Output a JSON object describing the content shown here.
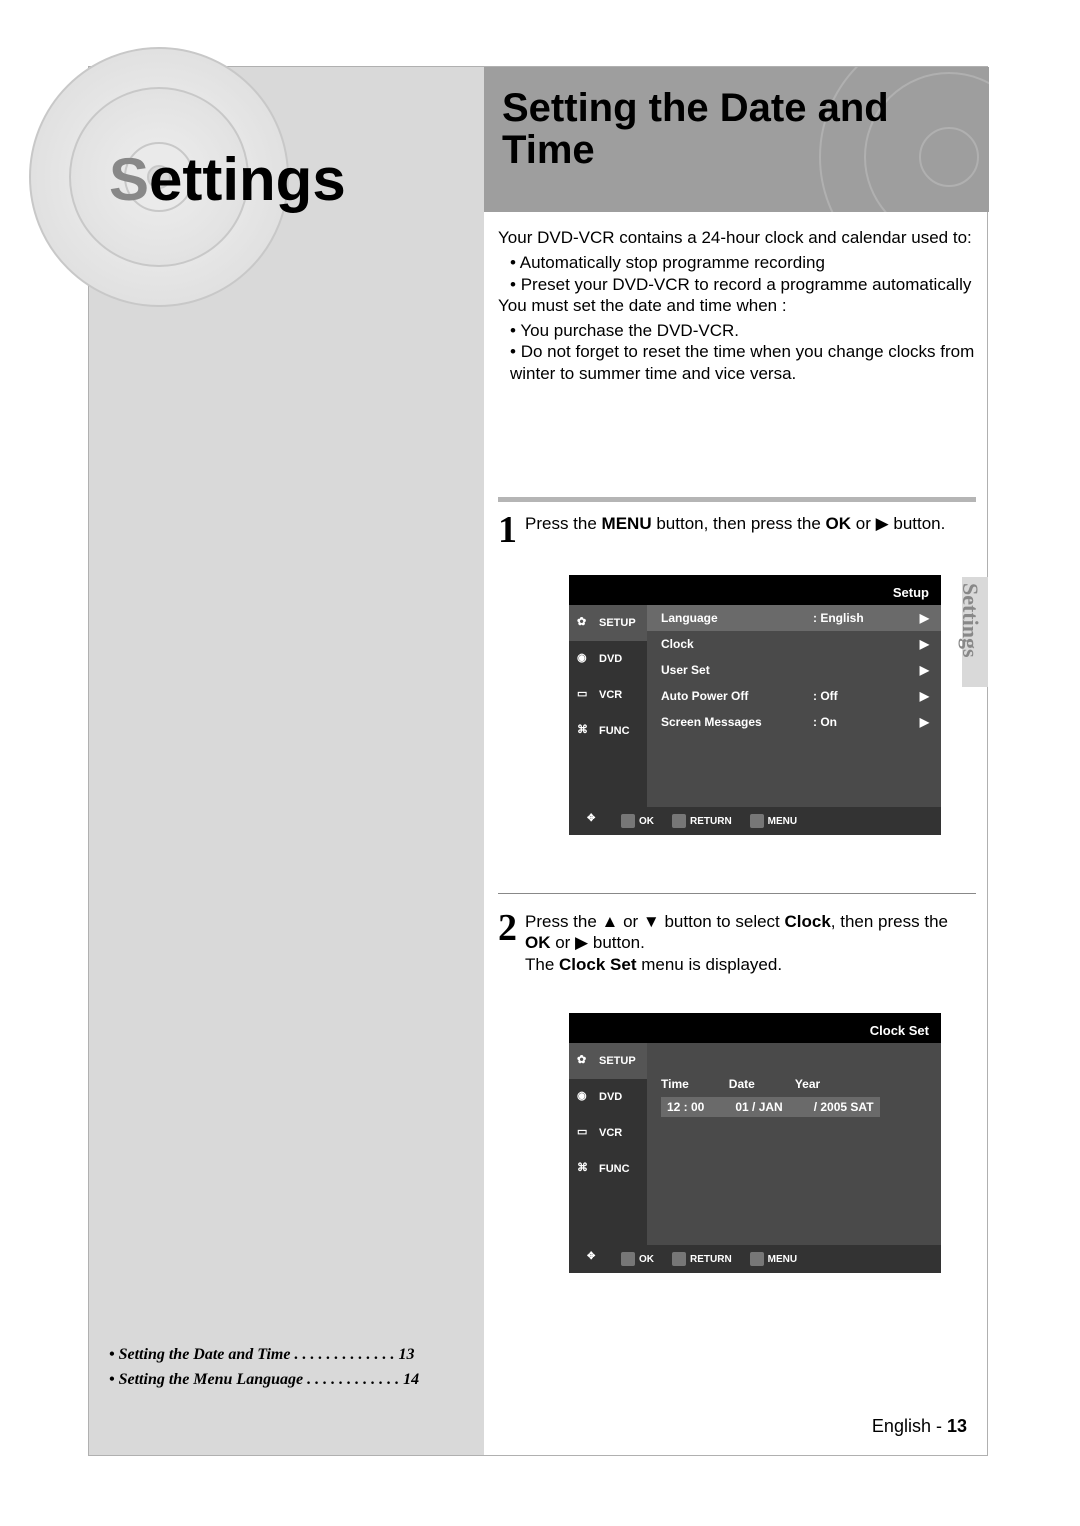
{
  "section": {
    "accent_letter": "S",
    "rest": "ettings"
  },
  "header": {
    "title_line1": "Setting the Date and",
    "title_line2": "Time"
  },
  "intro": {
    "p1": "Your DVD-VCR contains a 24-hour clock and calendar used to:",
    "b1": "Automatically stop programme recording",
    "b2": "Preset your DVD-VCR to record a programme automatically",
    "p2": "You must set the date and time when :",
    "b3": "You purchase the DVD-VCR.",
    "b4": "Do not forget to reset the time when you change clocks from winter to summer time and vice versa."
  },
  "step1": {
    "num": "1",
    "text_a": "Press the ",
    "bold_a": "MENU",
    "text_b": " button, then press the ",
    "bold_b": "OK",
    "text_c": " or ▶ button."
  },
  "step2": {
    "num": "2",
    "text_a": "Press the ▲ or ▼ button to select ",
    "bold_a": "Clock",
    "text_b": ", then press the ",
    "bold_b": "OK",
    "text_c": " or ▶ button.",
    "line2_a": "The ",
    "line2_bold": "Clock Set",
    "line2_b": " menu is displayed."
  },
  "osd1": {
    "title": "Setup",
    "side": [
      "SETUP",
      "DVD",
      "VCR",
      "FUNC"
    ],
    "rows": [
      {
        "label": "Language",
        "value": ": English",
        "arrow": "▶",
        "hl": true
      },
      {
        "label": "Clock",
        "value": "",
        "arrow": "▶",
        "hl": false
      },
      {
        "label": "User Set",
        "value": "",
        "arrow": "▶",
        "hl": false
      },
      {
        "label": "Auto Power Off",
        "value": ": Off",
        "arrow": "▶",
        "hl": false
      },
      {
        "label": "Screen Messages",
        "value": ": On",
        "arrow": "▶",
        "hl": false
      }
    ],
    "footer": [
      "OK",
      "RETURN",
      "MENU"
    ]
  },
  "osd2": {
    "title": "Clock Set",
    "side": [
      "SETUP",
      "DVD",
      "VCR",
      "FUNC"
    ],
    "headers": [
      "Time",
      "Date",
      "Year"
    ],
    "values": [
      "12 : 00",
      "01 / JAN",
      "/ 2005 SAT"
    ],
    "footer": [
      "OK",
      "RETURN",
      "MENU"
    ]
  },
  "toc": {
    "item1_label": "Setting the Date and Time",
    "item1_dots": " . . . . . . . . . . . . .  ",
    "item1_page": "13",
    "item2_label": "Setting the Menu Language",
    "item2_dots": " . . . . . . . . . . . .  ",
    "item2_page": "14"
  },
  "side_tab": "Settings",
  "footer": {
    "lang": "English - ",
    "page": "13"
  },
  "colors": {
    "left_bg": "#d9d9d9",
    "header_bg": "#9e9e9e",
    "accent_grey": "#888888",
    "divider": "#b5b5b5",
    "osd_black": "#000000",
    "osd_side": "#333333",
    "osd_main": "#4a4a4a",
    "osd_hl": "#6a6a6a"
  }
}
